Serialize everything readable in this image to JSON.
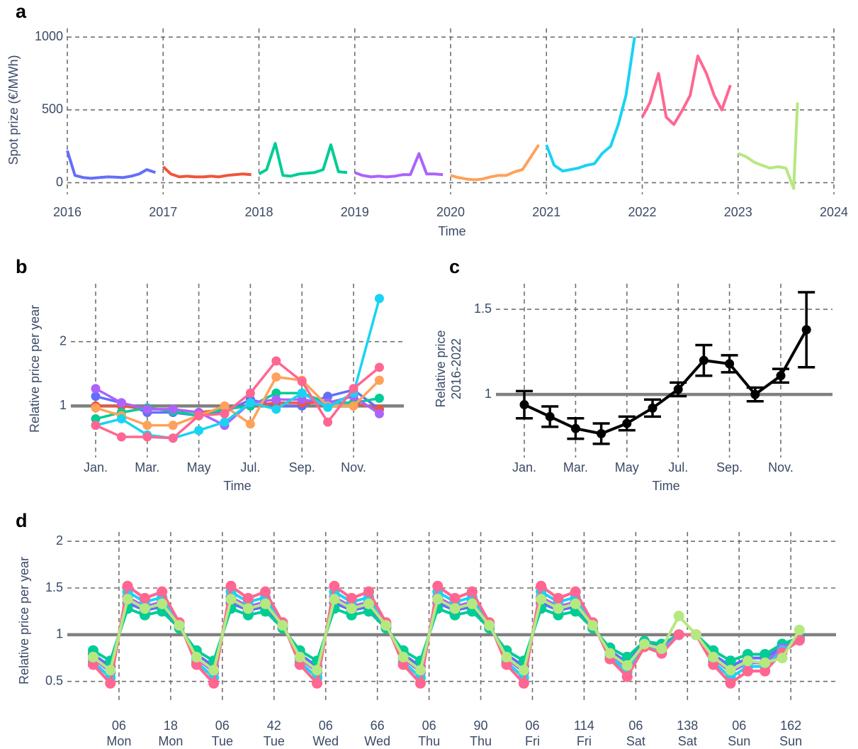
{
  "chart_data": [
    {
      "type": "line",
      "panel_label": "a",
      "y_label": "Spot prize (€/MWh)",
      "x_label": "Time",
      "xlim": [
        2016,
        2024
      ],
      "xticks": [
        2016,
        2017,
        2018,
        2019,
        2020,
        2021,
        2022,
        2023,
        2024
      ],
      "ylim": [
        -80,
        1060
      ],
      "yticks": [
        0,
        500,
        1000
      ],
      "grid": true,
      "markers": false,
      "series": [
        {
          "color": "#636efa",
          "x": [
            2016,
            2016.08,
            2016.17,
            2016.25,
            2016.33,
            2016.42,
            2016.5,
            2016.58,
            2016.67,
            2016.75,
            2016.83,
            2016.92
          ],
          "values": [
            220,
            50,
            35,
            30,
            35,
            40,
            38,
            35,
            45,
            60,
            90,
            70
          ]
        },
        {
          "color": "#ef553b",
          "x": [
            2017,
            2017.08,
            2017.17,
            2017.25,
            2017.33,
            2017.42,
            2017.5,
            2017.58,
            2017.67,
            2017.75,
            2017.83,
            2017.92
          ],
          "values": [
            110,
            60,
            40,
            45,
            40,
            40,
            45,
            40,
            50,
            55,
            60,
            55
          ]
        },
        {
          "color": "#00cc96",
          "x": [
            2018,
            2018.08,
            2018.17,
            2018.25,
            2018.33,
            2018.42,
            2018.5,
            2018.58,
            2018.67,
            2018.75,
            2018.83,
            2018.92
          ],
          "values": [
            60,
            90,
            270,
            50,
            45,
            60,
            65,
            70,
            90,
            260,
            75,
            70
          ]
        },
        {
          "color": "#ab63fa",
          "x": [
            2019,
            2019.08,
            2019.17,
            2019.25,
            2019.33,
            2019.42,
            2019.5,
            2019.58,
            2019.67,
            2019.75,
            2019.83,
            2019.92
          ],
          "values": [
            70,
            50,
            40,
            45,
            40,
            45,
            55,
            55,
            200,
            60,
            60,
            55
          ]
        },
        {
          "color": "#ffa15a",
          "x": [
            2020,
            2020.08,
            2020.17,
            2020.25,
            2020.33,
            2020.42,
            2020.5,
            2020.58,
            2020.67,
            2020.75,
            2020.83,
            2020.92
          ],
          "values": [
            50,
            35,
            25,
            20,
            25,
            40,
            50,
            50,
            75,
            90,
            170,
            260
          ]
        },
        {
          "color": "#19d3f3",
          "x": [
            2021,
            2021.08,
            2021.17,
            2021.25,
            2021.33,
            2021.42,
            2021.5,
            2021.58,
            2021.67,
            2021.75,
            2021.83,
            2021.92
          ],
          "values": [
            260,
            120,
            80,
            90,
            100,
            120,
            130,
            200,
            250,
            400,
            600,
            1000
          ]
        },
        {
          "color": "#ff6692",
          "x": [
            2022,
            2022.08,
            2022.17,
            2022.25,
            2022.33,
            2022.42,
            2022.5,
            2022.58,
            2022.67,
            2022.75,
            2022.83,
            2022.92
          ],
          "values": [
            450,
            550,
            750,
            450,
            400,
            500,
            600,
            870,
            750,
            600,
            500,
            670
          ]
        },
        {
          "color": "#b6e880",
          "x": [
            2023,
            2023.08,
            2023.17,
            2023.25,
            2023.33,
            2023.42,
            2023.5,
            2023.58,
            2023.62
          ],
          "values": [
            200,
            180,
            140,
            120,
            100,
            110,
            100,
            -40,
            550
          ]
        }
      ]
    },
    {
      "type": "line",
      "panel_label": "b",
      "y_label": "Relative price per year",
      "x_label": "Time",
      "categories": [
        "Jan.",
        null,
        "Mar.",
        null,
        "May",
        null,
        "Jul.",
        null,
        "Sep.",
        null,
        "Nov.",
        null
      ],
      "ylim": [
        0.2,
        2.9
      ],
      "yticks": [
        1,
        2
      ],
      "grid": true,
      "markers": true,
      "hline": 1,
      "series": [
        {
          "color": "#636efa",
          "values": [
            1.15,
            1.05,
            0.9,
            0.9,
            0.85,
            0.9,
            1.1,
            1.0,
            1.0,
            1.15,
            1.25,
            0.95
          ]
        },
        {
          "color": "#ef553b",
          "values": [
            1.0,
            1.0,
            0.95,
            0.95,
            0.9,
            0.95,
            1.0,
            1.05,
            1.05,
            1.05,
            1.05,
            0.95
          ]
        },
        {
          "color": "#00cc96",
          "values": [
            0.8,
            0.9,
            0.97,
            0.92,
            0.85,
            0.95,
            1.0,
            1.2,
            1.2,
            1.05,
            1.05,
            1.12
          ]
        },
        {
          "color": "#ab63fa",
          "values": [
            1.27,
            1.05,
            0.95,
            0.95,
            0.9,
            0.7,
            1.05,
            1.1,
            1.1,
            1.05,
            1.15,
            0.88
          ]
        },
        {
          "color": "#ffa15a",
          "values": [
            0.97,
            0.85,
            0.7,
            0.7,
            0.85,
            1.0,
            0.72,
            1.45,
            1.4,
            1.0,
            1.0,
            1.4
          ]
        },
        {
          "color": "#19d3f3",
          "values": [
            0.7,
            0.8,
            0.55,
            0.5,
            0.62,
            0.75,
            1.05,
            0.95,
            1.2,
            0.98,
            1.2,
            2.67
          ]
        },
        {
          "color": "#ff6692",
          "values": [
            0.7,
            0.52,
            0.52,
            0.5,
            0.85,
            0.88,
            1.2,
            1.7,
            1.38,
            0.75,
            1.27,
            1.6
          ]
        }
      ]
    },
    {
      "type": "line",
      "panel_label": "c",
      "y_label": [
        "Relative price",
        "2016-2022"
      ],
      "x_label": "Time",
      "categories": [
        "Jan.",
        null,
        "Mar.",
        null,
        "May",
        null,
        "Jul.",
        null,
        "Sep.",
        null,
        "Nov.",
        null
      ],
      "ylim": [
        0.63,
        1.65
      ],
      "yticks": [
        1,
        1.5
      ],
      "grid": true,
      "markers": true,
      "hline": 1,
      "series": [
        {
          "color": "#000000",
          "values": [
            0.94,
            0.87,
            0.8,
            0.77,
            0.83,
            0.92,
            1.03,
            1.2,
            1.18,
            1.0,
            1.11,
            1.38
          ],
          "errors": [
            0.08,
            0.06,
            0.06,
            0.06,
            0.04,
            0.05,
            0.04,
            0.09,
            0.05,
            0.04,
            0.04,
            0.22
          ]
        }
      ]
    },
    {
      "type": "line",
      "panel_label": "d",
      "y_label": "Relative price per year",
      "x": [
        0,
        4,
        8,
        12,
        16,
        20,
        24,
        28,
        32,
        36,
        40,
        44,
        48,
        52,
        56,
        60,
        64,
        68,
        72,
        76,
        80,
        84,
        88,
        92,
        96,
        100,
        104,
        108,
        112,
        116,
        120,
        124,
        128,
        132,
        136,
        140,
        144,
        148,
        152,
        156,
        160,
        164
      ],
      "xlim": [
        -6,
        172.5
      ],
      "xticks": [
        {
          "value": 6,
          "label": "06"
        },
        18,
        {
          "value": 30,
          "label": "06"
        },
        42,
        {
          "value": 54,
          "label": "06"
        },
        66,
        {
          "value": 78,
          "label": "06"
        },
        90,
        {
          "value": 102,
          "label": "06"
        },
        114,
        {
          "value": 126,
          "label": "06"
        },
        138,
        {
          "value": 150,
          "label": "06"
        },
        162
      ],
      "x_day_labels": [
        "Mon",
        "Mon",
        "Tue",
        "Tue",
        "Wed",
        "Wed",
        "Thu",
        "Thu",
        "Fri",
        "Fri",
        "Sat",
        "Sat",
        "Sun",
        "Sun"
      ],
      "ylim": [
        0.3,
        2.1
      ],
      "yticks": [
        0.5,
        1,
        1.5,
        2
      ],
      "grid": true,
      "markers": true,
      "hline": 1,
      "series": [
        {
          "color": "#636efa",
          "values": [
            0.79,
            0.66,
            1.34,
            1.26,
            1.3,
            1.09,
            0.79,
            0.66,
            1.34,
            1.26,
            1.3,
            1.09,
            0.79,
            0.66,
            1.34,
            1.26,
            1.3,
            1.09,
            0.79,
            0.66,
            1.34,
            1.26,
            1.3,
            1.09,
            0.79,
            0.66,
            1.34,
            1.26,
            1.3,
            1.09,
            0.83,
            0.7,
            0.92,
            0.87,
            1.0,
            1.0,
            0.79,
            0.66,
            0.75,
            0.75,
            0.87,
            0.96
          ]
        },
        {
          "color": "#ef553b",
          "values": [
            0.75,
            0.6,
            1.4,
            1.3,
            1.35,
            1.1,
            0.75,
            0.6,
            1.4,
            1.3,
            1.35,
            1.1,
            0.75,
            0.6,
            1.4,
            1.3,
            1.35,
            1.1,
            0.75,
            0.6,
            1.4,
            1.3,
            1.35,
            1.1,
            0.75,
            0.6,
            1.4,
            1.3,
            1.35,
            1.1,
            0.8,
            0.65,
            0.9,
            0.85,
            1.0,
            1.0,
            0.75,
            0.6,
            0.7,
            0.7,
            0.85,
            0.95
          ]
        },
        {
          "color": "#00cc96",
          "values": [
            0.83,
            0.72,
            1.28,
            1.21,
            1.25,
            1.07,
            0.83,
            0.72,
            1.28,
            1.21,
            1.25,
            1.07,
            0.83,
            0.72,
            1.28,
            1.21,
            1.25,
            1.07,
            0.83,
            0.72,
            1.28,
            1.21,
            1.25,
            1.07,
            0.83,
            0.72,
            1.28,
            1.21,
            1.25,
            1.07,
            0.86,
            0.76,
            0.93,
            0.9,
            1.0,
            1.0,
            0.83,
            0.72,
            0.79,
            0.79,
            0.9,
            0.97
          ]
        },
        {
          "color": "#ab63fa",
          "values": [
            0.75,
            0.6,
            1.4,
            1.3,
            1.35,
            1.1,
            0.75,
            0.6,
            1.4,
            1.3,
            1.35,
            1.1,
            0.75,
            0.6,
            1.4,
            1.3,
            1.35,
            1.1,
            0.75,
            0.6,
            1.4,
            1.3,
            1.35,
            1.1,
            0.75,
            0.6,
            1.4,
            1.3,
            1.35,
            1.1,
            0.8,
            0.65,
            0.9,
            0.85,
            1.0,
            1.0,
            0.75,
            0.6,
            0.7,
            0.7,
            0.85,
            0.95
          ]
        },
        {
          "color": "#ffa15a",
          "values": [
            0.68,
            0.48,
            1.52,
            1.39,
            1.46,
            1.13,
            0.68,
            0.48,
            1.52,
            1.39,
            1.46,
            1.13,
            0.68,
            0.48,
            1.52,
            1.39,
            1.46,
            1.13,
            0.68,
            0.48,
            1.52,
            1.39,
            1.46,
            1.13,
            0.68,
            0.48,
            1.52,
            1.39,
            1.46,
            1.13,
            0.74,
            0.55,
            0.87,
            0.8,
            1.0,
            1.0,
            0.68,
            0.48,
            0.61,
            0.61,
            0.81,
            0.94
          ]
        },
        {
          "color": "#19d3f3",
          "values": [
            0.71,
            0.54,
            1.46,
            1.35,
            1.4,
            1.12,
            0.71,
            0.54,
            1.46,
            1.35,
            1.4,
            1.12,
            0.71,
            0.54,
            1.46,
            1.35,
            1.4,
            1.12,
            0.71,
            0.54,
            1.46,
            1.35,
            1.4,
            1.12,
            0.71,
            0.54,
            1.46,
            1.35,
            1.4,
            1.12,
            0.77,
            0.6,
            0.89,
            0.83,
            1.0,
            1.0,
            0.71,
            0.54,
            0.66,
            0.66,
            0.83,
            0.94
          ]
        },
        {
          "color": "#ff6692",
          "values": [
            0.68,
            0.48,
            1.52,
            1.39,
            1.46,
            1.13,
            0.68,
            0.48,
            1.52,
            1.39,
            1.46,
            1.13,
            0.68,
            0.48,
            1.52,
            1.39,
            1.46,
            1.13,
            0.68,
            0.48,
            1.52,
            1.39,
            1.46,
            1.13,
            0.68,
            0.48,
            1.52,
            1.39,
            1.46,
            1.13,
            0.74,
            0.55,
            0.87,
            0.8,
            1.0,
            1.0,
            0.68,
            0.48,
            0.61,
            0.61,
            0.81,
            0.94
          ]
        },
        {
          "color": "#b6e880",
          "values": [
            0.76,
            0.62,
            1.38,
            1.28,
            1.33,
            1.1,
            0.76,
            0.62,
            1.38,
            1.28,
            1.33,
            1.1,
            0.76,
            0.62,
            1.38,
            1.28,
            1.33,
            1.1,
            0.76,
            0.62,
            1.38,
            1.28,
            1.33,
            1.1,
            0.76,
            0.62,
            1.38,
            1.28,
            1.33,
            1.1,
            0.8,
            0.67,
            0.9,
            0.85,
            1.2,
            1.0,
            0.76,
            0.62,
            0.72,
            0.7,
            0.75,
            1.05
          ]
        }
      ]
    }
  ]
}
